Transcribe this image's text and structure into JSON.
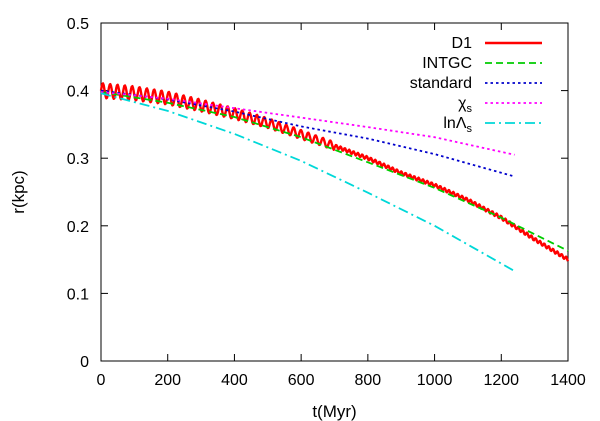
{
  "chart_data": {
    "type": "line",
    "xlabel": "t(Myr)",
    "ylabel": "r(kpc)",
    "xlim": [
      0,
      1400
    ],
    "ylim": [
      0,
      0.5
    ],
    "xticks": [
      0,
      200,
      400,
      600,
      800,
      1000,
      1200,
      1400
    ],
    "yticks": [
      0,
      0.1,
      0.2,
      0.3,
      0.4,
      0.5
    ],
    "xtick_labels": [
      "0",
      "200",
      "400",
      "600",
      "800",
      "1000",
      "1200",
      "1400"
    ],
    "ytick_labels": [
      "0",
      "0.1",
      "0.2",
      "0.3",
      "0.4",
      "0.5"
    ],
    "grid": false,
    "legend_position": "top-right",
    "series": [
      {
        "name": "D1",
        "legend_main": "D1",
        "legend_sub": "",
        "color": "#ff0000",
        "style": "solid",
        "oscillating": true,
        "x": [
          0,
          100,
          200,
          300,
          400,
          500,
          600,
          700,
          800,
          900,
          1000,
          1100,
          1200,
          1300,
          1400
        ],
        "y": [
          0.4,
          0.396,
          0.389,
          0.378,
          0.366,
          0.352,
          0.335,
          0.318,
          0.3,
          0.278,
          0.26,
          0.238,
          0.212,
          0.18,
          0.15
        ]
      },
      {
        "name": "INTGC",
        "legend_main": "INTGC",
        "legend_sub": "",
        "color": "#00cc00",
        "style": "dashed",
        "x": [
          0,
          200,
          400,
          600,
          800,
          1000,
          1200,
          1400
        ],
        "y": [
          0.398,
          0.382,
          0.361,
          0.331,
          0.294,
          0.256,
          0.212,
          0.163
        ]
      },
      {
        "name": "standard",
        "legend_main": "standard",
        "legend_sub": "",
        "color": "#0000cc",
        "style": "dotted",
        "x": [
          0,
          200,
          400,
          600,
          800,
          1000,
          1240
        ],
        "y": [
          0.4,
          0.387,
          0.369,
          0.347,
          0.329,
          0.306,
          0.273
        ]
      },
      {
        "name": "χs",
        "legend_main": "χ",
        "legend_sub": "s",
        "color": "#ff00ff",
        "style": "dotted",
        "x": [
          0,
          200,
          400,
          600,
          800,
          1000,
          1240
        ],
        "y": [
          0.398,
          0.388,
          0.374,
          0.36,
          0.346,
          0.331,
          0.305
        ]
      },
      {
        "name": "lnΛs",
        "legend_main": "lnΛ",
        "legend_sub": "s",
        "color": "#00d8d8",
        "style": "dashdot",
        "x": [
          0,
          200,
          400,
          600,
          800,
          1000,
          1240
        ],
        "y": [
          0.396,
          0.37,
          0.336,
          0.296,
          0.249,
          0.2,
          0.133
        ]
      }
    ]
  }
}
